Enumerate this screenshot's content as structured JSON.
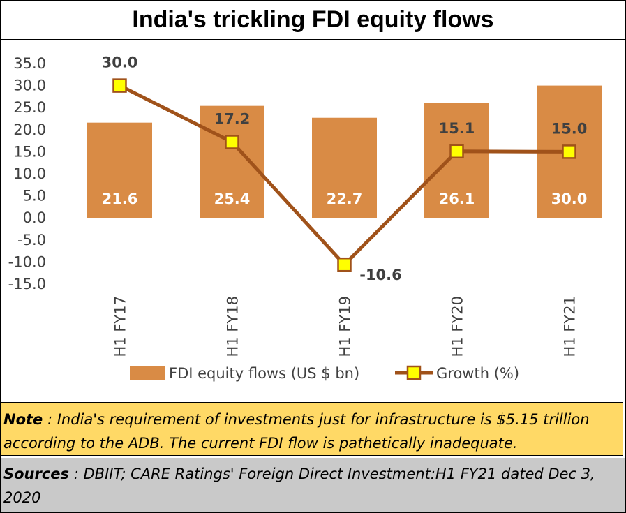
{
  "title": "India's trickling FDI equity flows",
  "chart_data": {
    "type": "bar",
    "categories": [
      "H1 FY17",
      "H1 FY18",
      "H1 FY19",
      "H1 FY20",
      "H1 FY21"
    ],
    "series": [
      {
        "name": "FDI equity flows (US $ bn)",
        "type": "bar",
        "values": [
          21.6,
          25.4,
          22.7,
          26.1,
          30.0
        ],
        "color": "#d98b45"
      },
      {
        "name": "Growth (%)",
        "type": "line",
        "values": [
          30.0,
          17.2,
          -10.6,
          15.1,
          15.0
        ],
        "color": "#a0521a",
        "marker_color": "#ffff00"
      }
    ],
    "bar_labels": [
      "21.6",
      "25.4",
      "22.7",
      "26.1",
      "30.0"
    ],
    "line_labels": [
      "30.0",
      "17.2",
      "-10.6",
      "15.1",
      "15.0"
    ],
    "yticks": [
      "35.0",
      "30.0",
      "25.0",
      "20.0",
      "15.0",
      "10.0",
      "5.0",
      "0.0",
      "-5.0",
      "-10.0",
      "-15.0"
    ],
    "ylim": [
      -15,
      35
    ],
    "grid": false,
    "legend_position": "bottom"
  },
  "note": {
    "label": "Note",
    "text": " : India's requirement of investments just for infrastructure is $5.15 trillion according to the ADB.  The current FDI flow is pathetically inadequate."
  },
  "sources": {
    "label": "Sources",
    "text": " : DBIIT; CARE Ratings'  Foreign Direct Investment:H1 FY21 dated Dec 3, 2020"
  }
}
